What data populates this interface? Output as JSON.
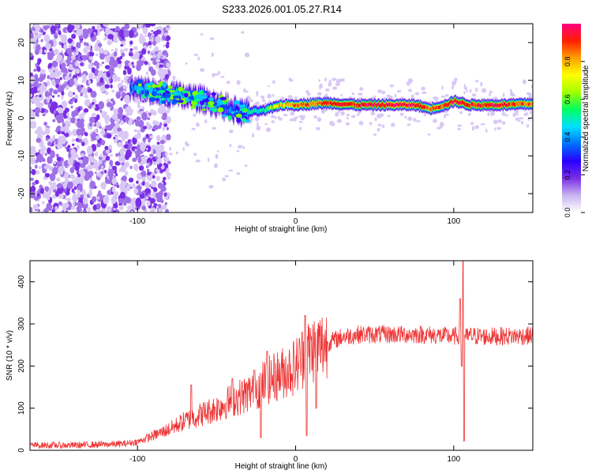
{
  "figure_title": "S233.2026.001.05.27.R14",
  "chart_data": [
    {
      "type": "heatmap",
      "xlabel": "Height of straight line (km)",
      "ylabel": "Frequency (Hz)",
      "xlim": [
        -168,
        150
      ],
      "ylim": [
        -25,
        25
      ],
      "xticks": [
        -100,
        0,
        100
      ],
      "yticks": [
        -20,
        -10,
        0,
        10,
        20
      ],
      "colorbar": {
        "label": "Normalized spectral amplitude",
        "range": [
          0,
          1
        ],
        "ticks": [
          "0.0",
          "0.2",
          "0.4",
          "0.6",
          "0.8"
        ],
        "colors": [
          "#ffffff",
          "#d9c8f5",
          "#a070e8",
          "#7a2ee6",
          "#3b00ff",
          "#0050ff",
          "#00c8ff",
          "#00ff80",
          "#80ff00",
          "#ffff00",
          "#ff8000",
          "#ff0000",
          "#ff00a0"
        ]
      },
      "ridge": {
        "x": [
          -105,
          -90,
          -75,
          -60,
          -45,
          -35,
          -20,
          -10,
          0,
          10,
          20,
          40,
          60,
          75,
          85,
          95,
          100,
          110,
          130,
          150
        ],
        "y": [
          8,
          7,
          6,
          5,
          3,
          1.5,
          2,
          3.5,
          3.5,
          3.8,
          4,
          3.5,
          3.5,
          3.5,
          2.5,
          3.5,
          4.5,
          3.5,
          3.5,
          3.8
        ],
        "peak": [
          0.45,
          0.5,
          0.55,
          0.5,
          0.45,
          0.5,
          0.6,
          0.8,
          0.85,
          0.85,
          0.9,
          0.92,
          0.95,
          0.95,
          0.85,
          0.9,
          0.95,
          0.9,
          0.95,
          0.85
        ]
      },
      "noise_region_x": [
        -168,
        -95
      ]
    },
    {
      "type": "line",
      "xlabel": "Height of straight line (km)",
      "ylabel": "SNR (10 * v/v)",
      "xlim": [
        -168,
        150
      ],
      "ylim": [
        0,
        450
      ],
      "xticks": [
        -100,
        0,
        100
      ],
      "yticks": [
        0,
        100,
        200,
        300,
        400
      ],
      "series": [
        {
          "name": "SNR",
          "color": "#ee3333",
          "envelope_x": [
            -168,
            -140,
            -110,
            -100,
            -90,
            -80,
            -70,
            -60,
            -50,
            -40,
            -30,
            -20,
            -10,
            0,
            5,
            10,
            20,
            30,
            40,
            60,
            80,
            100,
            105,
            108,
            110,
            120,
            150
          ],
          "envelope_y": [
            12,
            12,
            15,
            20,
            35,
            50,
            70,
            85,
            100,
            120,
            135,
            160,
            180,
            200,
            225,
            240,
            255,
            270,
            275,
            275,
            275,
            270,
            275,
            268,
            272,
            270,
            272
          ],
          "spikes": [
            {
              "x": -66,
              "y": 155
            },
            {
              "x": -40,
              "y": 170
            },
            {
              "x": -26,
              "y": 190
            },
            {
              "x": -22,
              "y": 30
            },
            {
              "x": -18,
              "y": 235
            },
            {
              "x": 6,
              "y": 320
            },
            {
              "x": 7,
              "y": 35
            },
            {
              "x": 13,
              "y": 100
            },
            {
              "x": 104,
              "y": 360
            },
            {
              "x": 105,
              "y": 200
            },
            {
              "x": 106,
              "y": 450
            },
            {
              "x": 106.5,
              "y": 22
            }
          ]
        }
      ]
    }
  ]
}
